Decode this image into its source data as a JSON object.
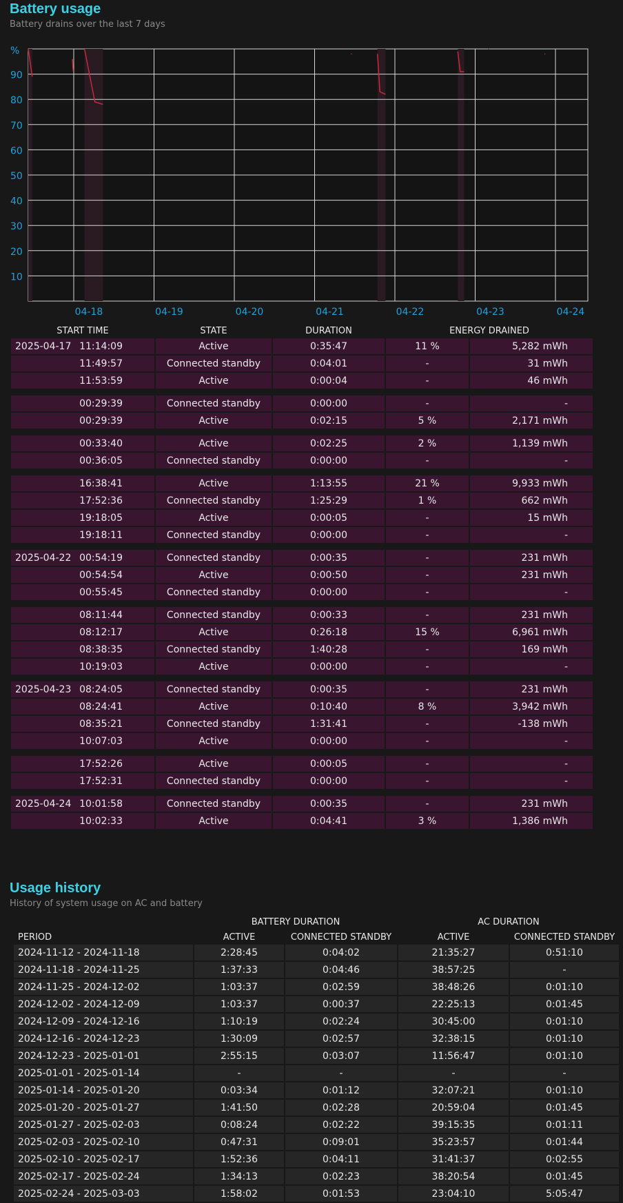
{
  "battery_usage": {
    "title": "Battery usage",
    "subtitle": "Battery drains over the last 7 days",
    "columns": [
      "START TIME",
      "STATE",
      "DURATION",
      "ENERGY DRAINED"
    ],
    "groups": [
      [
        {
          "date": "2025-04-17",
          "time": "11:14:09",
          "state": "Active",
          "duration": "0:35:47",
          "pct": "11 %",
          "mwh": "5,282 mWh"
        },
        {
          "date": "",
          "time": "11:49:57",
          "state": "Connected standby",
          "duration": "0:04:01",
          "pct": "-",
          "mwh": "31 mWh"
        },
        {
          "date": "",
          "time": "11:53:59",
          "state": "Active",
          "duration": "0:00:04",
          "pct": "-",
          "mwh": "46 mWh"
        }
      ],
      [
        {
          "date": "",
          "time": "00:29:39",
          "state": "Connected standby",
          "duration": "0:00:00",
          "pct": "-",
          "mwh": "-"
        },
        {
          "date": "",
          "time": "00:29:39",
          "state": "Active",
          "duration": "0:02:15",
          "pct": "5 %",
          "mwh": "2,171 mWh"
        }
      ],
      [
        {
          "date": "",
          "time": "00:33:40",
          "state": "Active",
          "duration": "0:02:25",
          "pct": "2 %",
          "mwh": "1,139 mWh"
        },
        {
          "date": "",
          "time": "00:36:05",
          "state": "Connected standby",
          "duration": "0:00:00",
          "pct": "-",
          "mwh": "-"
        }
      ],
      [
        {
          "date": "",
          "time": "16:38:41",
          "state": "Active",
          "duration": "1:13:55",
          "pct": "21 %",
          "mwh": "9,933 mWh"
        },
        {
          "date": "",
          "time": "17:52:36",
          "state": "Connected standby",
          "duration": "1:25:29",
          "pct": "1 %",
          "mwh": "662 mWh"
        },
        {
          "date": "",
          "time": "19:18:05",
          "state": "Active",
          "duration": "0:00:05",
          "pct": "-",
          "mwh": "15 mWh"
        },
        {
          "date": "",
          "time": "19:18:11",
          "state": "Connected standby",
          "duration": "0:00:00",
          "pct": "-",
          "mwh": "-"
        }
      ],
      [
        {
          "date": "2025-04-22",
          "time": "00:54:19",
          "state": "Connected standby",
          "duration": "0:00:35",
          "pct": "-",
          "mwh": "231 mWh"
        },
        {
          "date": "",
          "time": "00:54:54",
          "state": "Active",
          "duration": "0:00:50",
          "pct": "-",
          "mwh": "231 mWh"
        },
        {
          "date": "",
          "time": "00:55:45",
          "state": "Connected standby",
          "duration": "0:00:00",
          "pct": "-",
          "mwh": "-"
        }
      ],
      [
        {
          "date": "",
          "time": "08:11:44",
          "state": "Connected standby",
          "duration": "0:00:33",
          "pct": "-",
          "mwh": "231 mWh"
        },
        {
          "date": "",
          "time": "08:12:17",
          "state": "Active",
          "duration": "0:26:18",
          "pct": "15 %",
          "mwh": "6,961 mWh"
        },
        {
          "date": "",
          "time": "08:38:35",
          "state": "Connected standby",
          "duration": "1:40:28",
          "pct": "-",
          "mwh": "169 mWh"
        },
        {
          "date": "",
          "time": "10:19:03",
          "state": "Active",
          "duration": "0:00:00",
          "pct": "-",
          "mwh": "-"
        }
      ],
      [
        {
          "date": "2025-04-23",
          "time": "08:24:05",
          "state": "Connected standby",
          "duration": "0:00:35",
          "pct": "-",
          "mwh": "231 mWh"
        },
        {
          "date": "",
          "time": "08:24:41",
          "state": "Active",
          "duration": "0:10:40",
          "pct": "8 %",
          "mwh": "3,942 mWh"
        },
        {
          "date": "",
          "time": "08:35:21",
          "state": "Connected standby",
          "duration": "1:31:41",
          "pct": "-",
          "mwh": "-138 mWh"
        },
        {
          "date": "",
          "time": "10:07:03",
          "state": "Active",
          "duration": "0:00:00",
          "pct": "-",
          "mwh": "-"
        }
      ],
      [
        {
          "date": "",
          "time": "17:52:26",
          "state": "Active",
          "duration": "0:00:05",
          "pct": "-",
          "mwh": "-"
        },
        {
          "date": "",
          "time": "17:52:31",
          "state": "Connected standby",
          "duration": "0:00:00",
          "pct": "-",
          "mwh": "-"
        }
      ],
      [
        {
          "date": "2025-04-24",
          "time": "10:01:58",
          "state": "Connected standby",
          "duration": "0:00:35",
          "pct": "-",
          "mwh": "231 mWh"
        },
        {
          "date": "",
          "time": "10:02:33",
          "state": "Active",
          "duration": "0:04:41",
          "pct": "3 %",
          "mwh": "1,386 mWh"
        }
      ]
    ]
  },
  "chart_data": {
    "type": "line",
    "ylabel": "%",
    "yticks": [
      "90",
      "80",
      "70",
      "60",
      "50",
      "40",
      "30",
      "20",
      "10"
    ],
    "ylim": [
      0,
      100
    ],
    "xticks": [
      "04-18",
      "04-19",
      "04-20",
      "04-21",
      "04-22",
      "04-23",
      "04-24"
    ],
    "grid": true,
    "series_color": "#c8283c",
    "segments": [
      {
        "x": [
          0.0,
          0.05
        ],
        "y": [
          100,
          89
        ]
      },
      {
        "x": [
          0.55,
          0.56
        ],
        "y": [
          96,
          91
        ]
      },
      {
        "x": [
          0.7,
          0.83,
          0.93
        ],
        "y": [
          100,
          79,
          78
        ]
      },
      {
        "x": [
          4.02,
          4.03
        ],
        "y": [
          98,
          98
        ]
      },
      {
        "x": [
          4.35,
          4.38,
          4.45
        ],
        "y": [
          98,
          83,
          82
        ]
      },
      {
        "x": [
          5.35,
          5.38,
          5.43
        ],
        "y": [
          99,
          91,
          91
        ]
      },
      {
        "x": [
          5.73,
          5.74
        ],
        "y": [
          100,
          100
        ]
      },
      {
        "x": [
          6.43,
          6.44
        ],
        "y": [
          98,
          98
        ]
      }
    ]
  },
  "usage_history": {
    "title": "Usage history",
    "subtitle": "History of system usage on AC and battery",
    "group_headers": [
      "BATTERY DURATION",
      "AC DURATION"
    ],
    "columns": [
      "PERIOD",
      "ACTIVE",
      "CONNECTED STANDBY",
      "ACTIVE",
      "CONNECTED STANDBY"
    ],
    "rows": [
      [
        "2024-11-12 - 2024-11-18",
        "2:28:45",
        "0:04:02",
        "21:35:27",
        "0:51:10"
      ],
      [
        "2024-11-18 - 2024-11-25",
        "1:37:33",
        "0:04:46",
        "38:57:25",
        "-"
      ],
      [
        "2024-11-25 - 2024-12-02",
        "1:03:37",
        "0:02:59",
        "38:48:26",
        "0:01:10"
      ],
      [
        "2024-12-02 - 2024-12-09",
        "1:03:37",
        "0:00:37",
        "22:25:13",
        "0:01:45"
      ],
      [
        "2024-12-09 - 2024-12-16",
        "1:10:19",
        "0:02:24",
        "30:45:00",
        "0:01:10"
      ],
      [
        "2024-12-16 - 2024-12-23",
        "1:30:09",
        "0:02:57",
        "32:38:15",
        "0:01:10"
      ],
      [
        "2024-12-23 - 2025-01-01",
        "2:55:15",
        "0:03:07",
        "11:56:47",
        "0:01:10"
      ],
      [
        "2025-01-01 - 2025-01-14",
        "-",
        "-",
        "-",
        "-"
      ],
      [
        "2025-01-14 - 2025-01-20",
        "0:03:34",
        "0:01:12",
        "32:07:21",
        "0:01:10"
      ],
      [
        "2025-01-20 - 2025-01-27",
        "1:41:50",
        "0:02:28",
        "20:59:04",
        "0:01:45"
      ],
      [
        "2025-01-27 - 2025-02-03",
        "0:08:24",
        "0:02:22",
        "39:15:35",
        "0:01:11"
      ],
      [
        "2025-02-03 - 2025-02-10",
        "0:47:31",
        "0:09:01",
        "35:23:57",
        "0:01:44"
      ],
      [
        "2025-02-10 - 2025-02-17",
        "1:52:36",
        "0:04:11",
        "31:41:37",
        "0:02:55"
      ],
      [
        "2025-02-17 - 2025-02-24",
        "1:34:13",
        "0:02:23",
        "38:20:54",
        "0:01:45"
      ],
      [
        "2025-02-24 - 2025-03-03",
        "1:58:02",
        "0:01:53",
        "23:04:10",
        "5:05:47"
      ]
    ]
  }
}
